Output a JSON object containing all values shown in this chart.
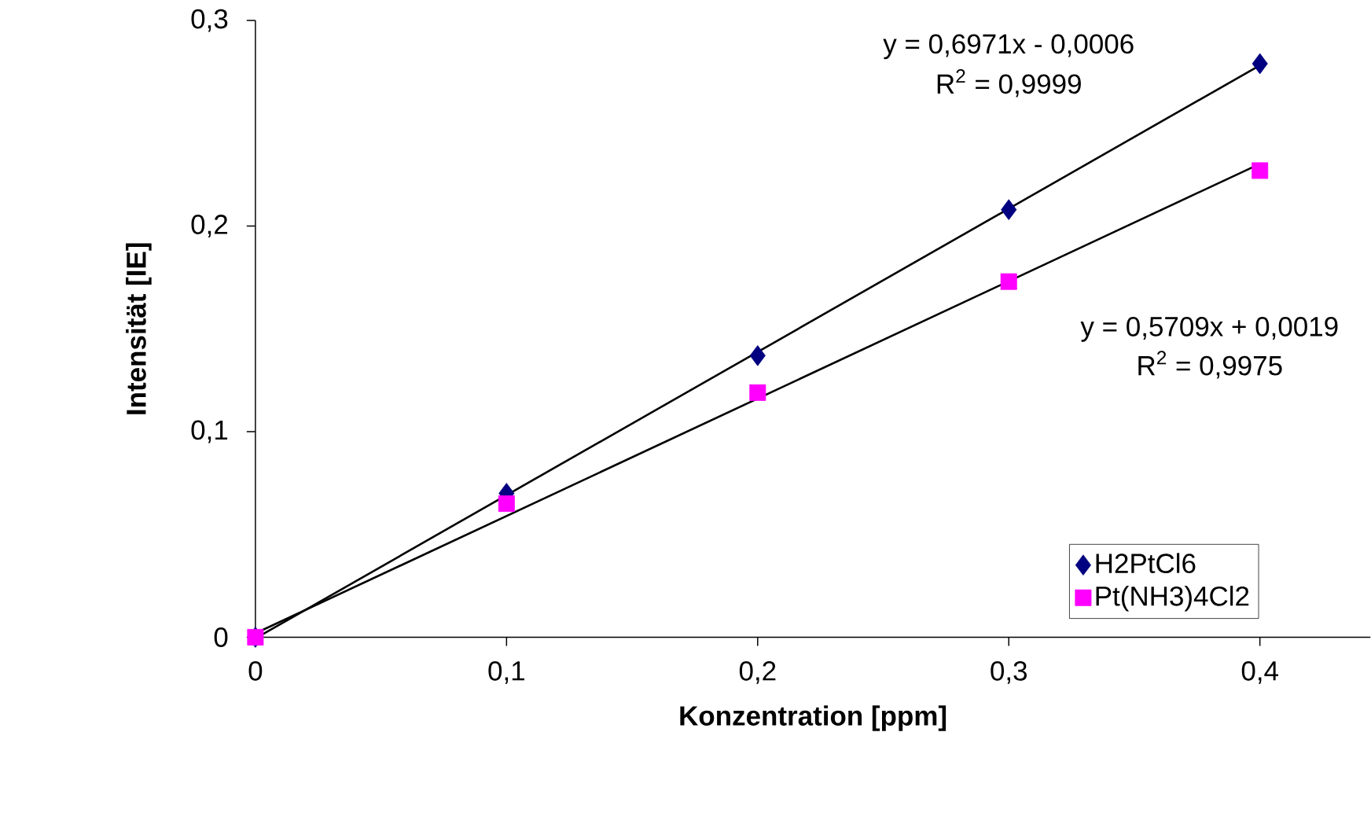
{
  "chart_data": {
    "type": "scatter",
    "xlabel": "Konzentration [ppm]",
    "ylabel": "Intensität [IE]",
    "xlim": [
      0,
      0.444
    ],
    "ylim": [
      0,
      0.3
    ],
    "xticks": [
      0,
      {
        "value": 0.1,
        "label": "0,1"
      },
      {
        "value": 0.2,
        "label": "0,2"
      },
      {
        "value": 0.3,
        "label": "0,3"
      },
      {
        "value": 0.4,
        "label": "0,4"
      }
    ],
    "yticks": [
      0,
      {
        "value": 0.1,
        "label": "0,1"
      },
      {
        "value": 0.2,
        "label": "0,2"
      },
      {
        "value": 0.3,
        "label": "0,3"
      }
    ],
    "grid": false,
    "legend": "bottom right",
    "series": [
      {
        "name": "H2PtCl6",
        "color": "#000080",
        "marker": "diamond",
        "x": [
          0,
          0.1,
          0.2,
          0.3,
          0.4
        ],
        "values": [
          0,
          0.07,
          0.137,
          0.208,
          0.279
        ]
      },
      {
        "name": "Pt(NH3)4Cl2",
        "color": "#ff00ff",
        "marker": "square",
        "x": [
          0,
          0.1,
          0.2,
          0.3,
          0.4
        ],
        "values": [
          0,
          0.065,
          0.119,
          0.173,
          0.227
        ]
      },
      {
        "type": "line",
        "color": "#000000",
        "x": [
          0.001,
          0.4
        ],
        "values": [
          0.0001,
          0.2782
        ]
      },
      {
        "type": "line",
        "color": "#000000",
        "x": [
          0,
          0.4
        ],
        "values": [
          0.0019,
          0.2303
        ]
      }
    ],
    "annotations": [
      "y = 0,6971x - 0,0006",
      "R$^{2}$ = 0,9999",
      "y = 0,5709x + 0,0019",
      "R$^{2}$ = 0,9975"
    ]
  }
}
